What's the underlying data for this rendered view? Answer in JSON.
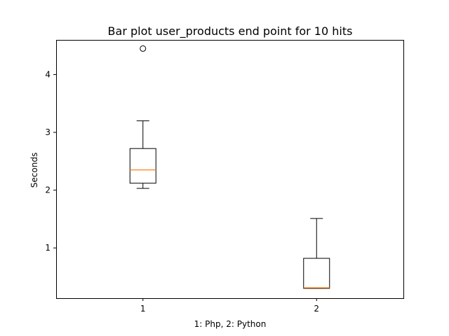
{
  "chart_data": {
    "type": "boxplot",
    "title": "Bar plot user_products end point for 10 hits",
    "xlabel": "1: Php, 2: Python",
    "ylabel": "Seconds",
    "categories": [
      "1",
      "2"
    ],
    "series": [
      {
        "category": "1",
        "whisker_low": 2.03,
        "q1": 2.12,
        "median": 2.35,
        "q3": 2.72,
        "whisker_high": 3.2,
        "outliers": [
          4.45
        ]
      },
      {
        "category": "2",
        "whisker_low": 0.3,
        "q1": 0.3,
        "median": 0.31,
        "q3": 0.82,
        "whisker_high": 1.51,
        "outliers": []
      }
    ],
    "ylim": [
      0.13,
      4.6
    ],
    "xlim": [
      0.5,
      2.5
    ],
    "yticks": [
      1,
      2,
      3,
      4
    ],
    "grid": false,
    "colors": {
      "box": "#000000",
      "median": "#ff7f0e"
    }
  }
}
